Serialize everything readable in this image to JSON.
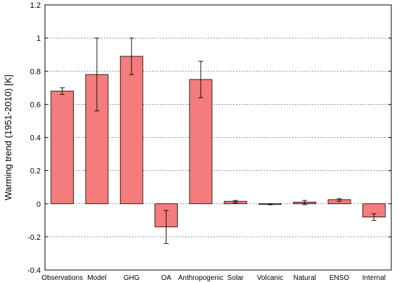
{
  "chart_data": {
    "type": "bar",
    "categories": [
      "Observations",
      "Model",
      "GHG",
      "OA",
      "Anthropogenic",
      "Solar",
      "Volcanic",
      "Natural",
      "ENSO",
      "Internal"
    ],
    "values": [
      0.68,
      0.78,
      0.89,
      -0.14,
      0.75,
      0.015,
      -0.003,
      0.01,
      0.025,
      -0.08
    ],
    "error_low": [
      0.66,
      0.56,
      0.78,
      -0.24,
      0.64,
      0.005,
      -0.006,
      -0.005,
      0.015,
      -0.1
    ],
    "error_high": [
      0.7,
      1.0,
      1.0,
      -0.04,
      0.86,
      0.02,
      0.0,
      0.02,
      0.03,
      -0.06
    ],
    "ylabel": "Warming trend (1951-2010) [K]",
    "ylim": [
      -0.4,
      1.2
    ],
    "yticks": [
      -0.4,
      -0.2,
      0,
      0.2,
      0.4,
      0.6,
      0.8,
      1,
      1.2
    ],
    "ytick_labels": [
      "-0.4",
      "-0.2",
      "0",
      "0.2",
      "0.4",
      "0.6",
      "0.8",
      "1",
      "1.2"
    ],
    "grid": "horizontal-dotted",
    "legend": "none",
    "bar_color": "#f47c7c"
  }
}
